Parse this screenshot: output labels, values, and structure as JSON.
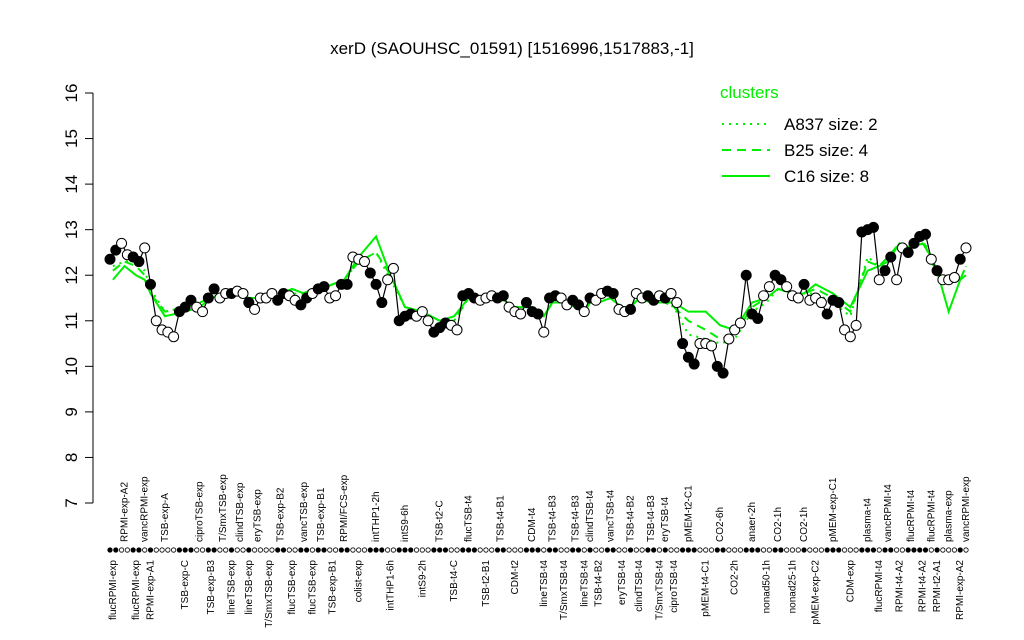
{
  "chart_data": {
    "type": "line",
    "title": "xerD (SAOUHSC_01591) [1516996,1517883,-1]",
    "ylim": [
      7,
      16
    ],
    "yticks": [
      7,
      8,
      9,
      10,
      11,
      12,
      13,
      14,
      15,
      16
    ],
    "legend_title": "clusters",
    "legend_color": "#00ee00",
    "groups": [
      {
        "label": "flucRPMI-exp",
        "filled": true,
        "values": [
          12.35,
          12.55
        ]
      },
      {
        "label": "RPMI-exp-A2",
        "filled": false,
        "values": [
          12.7,
          12.45
        ]
      },
      {
        "label": "flucRPMI-exp",
        "filled": true,
        "values": [
          12.4,
          12.3
        ]
      },
      {
        "label": "vancRPMI-exp",
        "filled": false,
        "values": [
          12.6
        ]
      },
      {
        "label": "RPMI-exp-A1",
        "filled": true,
        "values": [
          11.8
        ]
      },
      {
        "label": "TSB-exp-A",
        "filled": false,
        "values": [
          11.0,
          10.8,
          10.75,
          10.65
        ]
      },
      {
        "label": "TSB-exp-C",
        "filled": true,
        "values": [
          11.2,
          11.3,
          11.45
        ]
      },
      {
        "label": "ciproTSB-exp",
        "filled": false,
        "values": [
          11.3,
          11.2
        ]
      },
      {
        "label": "TSB-exp-B3",
        "filled": true,
        "values": [
          11.5,
          11.7
        ]
      },
      {
        "label": "T/SmxTSB-exp",
        "filled": false,
        "values": [
          11.5,
          11.6
        ]
      },
      {
        "label": "lineTSB-exp",
        "filled": true,
        "values": [
          11.6
        ]
      },
      {
        "label": "clindTSB-exp",
        "filled": false,
        "values": [
          11.65,
          11.6
        ]
      },
      {
        "label": "lineTSB-exp",
        "filled": true,
        "values": [
          11.4
        ]
      },
      {
        "label": "eryTSB-exp",
        "filled": false,
        "values": [
          11.25,
          11.5
        ]
      },
      {
        "label": "T/SmxTSB-exp",
        "filled": false,
        "values": [
          11.5,
          11.6
        ]
      },
      {
        "label": "TSB-exp-B2",
        "filled": true,
        "values": [
          11.45,
          11.6
        ]
      },
      {
        "label": "flucTSB-exp",
        "filled": false,
        "values": [
          11.55,
          11.45
        ]
      },
      {
        "label": "vancTSB-exp",
        "filled": true,
        "values": [
          11.35,
          11.5
        ]
      },
      {
        "label": "flucTSB-exp",
        "filled": false,
        "values": [
          11.6
        ]
      },
      {
        "label": "TSB-exp-B1",
        "filled": true,
        "values": [
          11.7,
          11.75
        ]
      },
      {
        "label": "TSB-exp-B1",
        "filled": false,
        "values": [
          11.5,
          11.55
        ]
      },
      {
        "label": "RPMI/FCS-exp",
        "filled": true,
        "values": [
          11.8,
          11.8
        ]
      },
      {
        "label": "colist-exp",
        "filled": false,
        "values": [
          12.4,
          12.35,
          12.3
        ]
      },
      {
        "label": "intTHP1-2h",
        "filled": true,
        "values": [
          12.05,
          11.8,
          11.4
        ]
      },
      {
        "label": "intTHP1-6h",
        "filled": false,
        "values": [
          11.9,
          12.15
        ]
      },
      {
        "label": "intS9-6h",
        "filled": true,
        "values": [
          11.0,
          11.1,
          11.15
        ]
      },
      {
        "label": "intS9-2h",
        "filled": false,
        "values": [
          11.1,
          11.2,
          11.0
        ]
      },
      {
        "label": "TSB-t2-C",
        "filled": true,
        "values": [
          10.75,
          10.85,
          10.95
        ]
      },
      {
        "label": "TSB-t4-C",
        "filled": false,
        "values": [
          10.9,
          10.8
        ]
      },
      {
        "label": "flucTSB-t4",
        "filled": true,
        "values": [
          11.55,
          11.6,
          11.5
        ]
      },
      {
        "label": "TSB-t2-B1",
        "filled": false,
        "values": [
          11.45,
          11.5,
          11.55
        ]
      },
      {
        "label": "TSB-t4-B1",
        "filled": true,
        "values": [
          11.5,
          11.55
        ]
      },
      {
        "label": "CDM-t2",
        "filled": false,
        "values": [
          11.3,
          11.2,
          11.15
        ]
      },
      {
        "label": "CDM-t4",
        "filled": true,
        "values": [
          11.4,
          11.2,
          11.15
        ]
      },
      {
        "label": "lineTSB-t4",
        "filled": false,
        "values": [
          10.75
        ]
      },
      {
        "label": "TSB-t4-B3",
        "filled": true,
        "values": [
          11.5,
          11.55
        ]
      },
      {
        "label": "T/SmxTSB-t4",
        "filled": false,
        "values": [
          11.5,
          11.35
        ]
      },
      {
        "label": "TSB-t4-B3",
        "filled": true,
        "values": [
          11.45,
          11.35
        ]
      },
      {
        "label": "lineTSB-t4",
        "filled": false,
        "values": [
          11.2
        ]
      },
      {
        "label": "clindTSB-t4",
        "filled": true,
        "values": [
          11.5
        ]
      },
      {
        "label": "TSB-t4-B2",
        "filled": false,
        "values": [
          11.45,
          11.6
        ]
      },
      {
        "label": "vancTSB-t4",
        "filled": true,
        "values": [
          11.65,
          11.6
        ]
      },
      {
        "label": "eryTSB-t4",
        "filled": false,
        "values": [
          11.25,
          11.2
        ]
      },
      {
        "label": "TSB-t4-B2",
        "filled": true,
        "values": [
          11.25
        ]
      },
      {
        "label": "clindTSB-t4",
        "filled": false,
        "values": [
          11.6,
          11.5
        ]
      },
      {
        "label": "TSB-t4-B3",
        "filled": true,
        "values": [
          11.55,
          11.45
        ]
      },
      {
        "label": "T/SmxTSB-t4",
        "filled": false,
        "values": [
          11.55
        ]
      },
      {
        "label": "eryTSB-t4",
        "filled": true,
        "values": [
          11.5
        ]
      },
      {
        "label": "ciproTSB-t4",
        "filled": false,
        "values": [
          11.6,
          11.4
        ]
      },
      {
        "label": "pMEM-t2-C1",
        "filled": true,
        "values": [
          10.5,
          10.2,
          10.05
        ]
      },
      {
        "label": "pMEM-t4-C1",
        "filled": false,
        "values": [
          10.5,
          10.5,
          10.45
        ]
      },
      {
        "label": "CO2-6h",
        "filled": true,
        "values": [
          10.0,
          9.85
        ]
      },
      {
        "label": "CO2-2h",
        "filled": false,
        "values": [
          10.6,
          10.8,
          10.95
        ]
      },
      {
        "label": "anaer-2h",
        "filled": true,
        "values": [
          12.0,
          11.15,
          11.05
        ]
      },
      {
        "label": "nonad50-1h",
        "filled": false,
        "values": [
          11.55,
          11.75
        ]
      },
      {
        "label": "CO2-1h",
        "filled": true,
        "values": [
          12.0,
          11.9
        ]
      },
      {
        "label": "nonad25-1h",
        "filled": false,
        "values": [
          11.75,
          11.55,
          11.5
        ]
      },
      {
        "label": "CO2-1h",
        "filled": true,
        "values": [
          11.8
        ]
      },
      {
        "label": "pMEM-exp-C2",
        "filled": false,
        "values": [
          11.45,
          11.5,
          11.4
        ]
      },
      {
        "label": "pMEM-exp-C1",
        "filled": true,
        "values": [
          11.15,
          11.45,
          11.4
        ]
      },
      {
        "label": "CDM-exp",
        "filled": false,
        "values": [
          10.8,
          10.65,
          10.9
        ]
      },
      {
        "label": "plasma-t4",
        "filled": true,
        "values": [
          12.95,
          13.0,
          13.05
        ]
      },
      {
        "label": "flucRPMI-t4",
        "filled": false,
        "values": [
          11.9
        ]
      },
      {
        "label": "vancRPMI-t4",
        "filled": true,
        "values": [
          12.1,
          12.4
        ]
      },
      {
        "label": "RPMI-t4-A2",
        "filled": false,
        "values": [
          11.9,
          12.6
        ]
      },
      {
        "label": "flucRPMI-t4",
        "filled": true,
        "values": [
          12.5,
          12.7
        ]
      },
      {
        "label": "RPMI-t4-A2",
        "filled": true,
        "values": [
          12.85,
          12.9
        ]
      },
      {
        "label": "flucRPMI-t4",
        "filled": false,
        "values": [
          12.35
        ]
      },
      {
        "label": "RPMI-t2-A1",
        "filled": true,
        "values": [
          12.1
        ]
      },
      {
        "label": "plasma-exp",
        "filled": false,
        "values": [
          11.9,
          11.9,
          11.95
        ]
      },
      {
        "label": "RPMI-exp-A2",
        "filled": true,
        "values": [
          12.35
        ]
      },
      {
        "label": "vancRPMI-exp",
        "filled": false,
        "values": [
          12.6
        ]
      }
    ],
    "series": [
      {
        "name": "A837 size: 2",
        "color": "#00ee00",
        "dash": "dotted",
        "values": [
          12.2,
          12.3,
          12.3,
          12.1,
          11.7,
          11.2,
          11.3,
          11.4,
          11.5,
          11.6,
          11.6,
          11.6,
          11.5,
          11.5,
          11.6,
          11.6,
          11.6,
          11.6,
          11.7,
          11.7,
          11.8,
          11.9,
          12.3,
          12.5,
          11.9,
          11.3,
          11.2,
          11.0,
          11.0,
          11.5,
          11.5,
          11.5,
          11.3,
          11.3,
          11.1,
          11.4,
          11.4,
          11.3,
          11.2,
          11.4,
          11.4,
          11.5,
          11.3,
          11.3,
          11.5,
          11.4,
          11.4,
          11.4,
          11.3,
          10.7,
          10.6,
          10.5,
          10.6,
          11.2,
          11.4,
          11.7,
          11.6,
          11.6,
          11.6,
          11.4,
          11.1,
          12.4,
          12.2,
          12.4,
          12.7,
          12.6,
          12.8,
          12.4,
          12.0,
          11.9,
          11.9,
          12.2
        ]
      },
      {
        "name": "B25 size: 4",
        "color": "#00ee00",
        "dash": "dashed",
        "values": [
          12.1,
          12.3,
          12.2,
          12.0,
          11.6,
          11.2,
          11.3,
          11.4,
          11.5,
          11.6,
          11.6,
          11.6,
          11.5,
          11.5,
          11.6,
          11.6,
          11.7,
          11.6,
          11.7,
          11.7,
          11.8,
          11.9,
          12.3,
          12.5,
          12.0,
          11.3,
          11.2,
          11.0,
          11.0,
          11.5,
          11.5,
          11.5,
          11.3,
          11.3,
          11.1,
          11.4,
          11.4,
          11.3,
          11.2,
          11.4,
          11.4,
          11.5,
          11.3,
          11.3,
          11.5,
          11.4,
          11.4,
          11.4,
          11.3,
          11.0,
          10.8,
          10.6,
          10.7,
          11.3,
          11.5,
          11.7,
          11.6,
          11.6,
          11.7,
          11.5,
          11.2,
          12.3,
          12.2,
          12.4,
          12.7,
          12.6,
          12.8,
          12.3,
          12.0,
          11.9,
          11.9,
          12.2
        ]
      },
      {
        "name": "C16 size: 8",
        "color": "#00ee00",
        "dash": "solid",
        "values": [
          11.9,
          12.2,
          12.0,
          11.9,
          11.6,
          11.1,
          11.2,
          11.3,
          11.5,
          11.6,
          11.6,
          11.6,
          11.5,
          11.5,
          11.6,
          11.6,
          11.7,
          11.6,
          11.7,
          11.7,
          11.8,
          11.9,
          12.4,
          12.85,
          12.0,
          11.3,
          11.2,
          11.0,
          11.1,
          11.5,
          11.5,
          11.5,
          11.3,
          11.3,
          11.1,
          11.4,
          11.4,
          11.3,
          11.2,
          11.4,
          11.4,
          11.5,
          11.3,
          11.3,
          11.5,
          11.4,
          11.4,
          11.4,
          11.4,
          11.2,
          11.2,
          10.9,
          10.8,
          11.4,
          11.5,
          11.7,
          11.6,
          11.6,
          11.8,
          11.6,
          11.3,
          12.1,
          12.2,
          12.3,
          12.7,
          12.6,
          12.7,
          12.4,
          12.1,
          11.2,
          11.9,
          12.0
        ]
      }
    ]
  }
}
